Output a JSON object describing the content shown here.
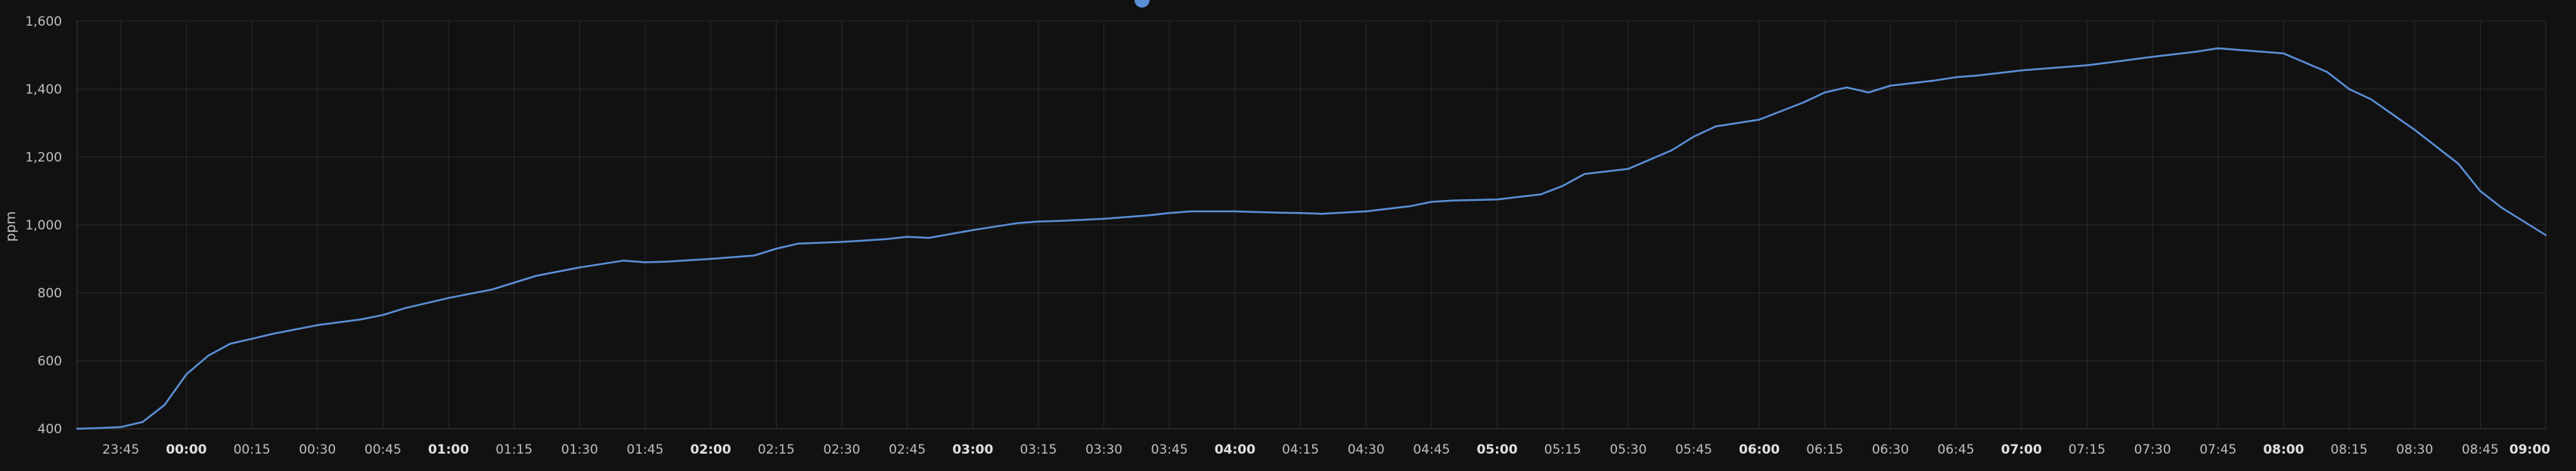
{
  "chart_data": {
    "type": "line",
    "title": "",
    "xlabel": "",
    "ylabel": "ppm",
    "ylim": [
      400,
      1600
    ],
    "yticks": [
      "400",
      "600",
      "800",
      "1,000",
      "1,200",
      "1,400",
      "1,600"
    ],
    "xlim": [
      "23:35",
      "09:00"
    ],
    "xticks": [
      "23:45",
      "00:00",
      "00:15",
      "00:30",
      "00:45",
      "01:00",
      "01:15",
      "01:30",
      "01:45",
      "02:00",
      "02:15",
      "02:30",
      "02:45",
      "03:00",
      "03:15",
      "03:30",
      "03:45",
      "04:00",
      "04:15",
      "04:30",
      "04:45",
      "05:00",
      "05:15",
      "05:30",
      "05:45",
      "06:00",
      "06:15",
      "06:30",
      "06:45",
      "07:00",
      "07:15",
      "07:30",
      "07:45",
      "08:00",
      "08:15",
      "08:30",
      "08:45",
      "09:00"
    ],
    "xticks_bold": [
      "00:00",
      "01:00",
      "02:00",
      "03:00",
      "04:00",
      "05:00",
      "06:00",
      "07:00",
      "08:00",
      "09:00"
    ],
    "grid": true,
    "legend": "top-center",
    "colors": {
      "background": "#111111",
      "grid": "#2a2a2a",
      "series": "#5b8fd6"
    },
    "series": [
      {
        "x": [
          "23:35",
          "23:40",
          "23:45",
          "23:50",
          "23:55",
          "00:00",
          "00:05",
          "00:10",
          "00:15",
          "00:20",
          "00:30",
          "00:40",
          "00:45",
          "00:50",
          "01:00",
          "01:10",
          "01:15",
          "01:20",
          "01:30",
          "01:40",
          "01:45",
          "01:50",
          "02:00",
          "02:10",
          "02:15",
          "02:20",
          "02:30",
          "02:40",
          "02:45",
          "02:50",
          "03:00",
          "03:10",
          "03:15",
          "03:20",
          "03:30",
          "03:40",
          "03:45",
          "03:50",
          "04:00",
          "04:10",
          "04:15",
          "04:20",
          "04:30",
          "04:40",
          "04:45",
          "04:50",
          "05:00",
          "05:10",
          "05:15",
          "05:20",
          "05:30",
          "05:40",
          "05:45",
          "05:50",
          "06:00",
          "06:10",
          "06:15",
          "06:20",
          "06:25",
          "06:30",
          "06:40",
          "06:45",
          "06:50",
          "07:00",
          "07:10",
          "07:15",
          "07:20",
          "07:30",
          "07:40",
          "07:45",
          "07:50",
          "08:00",
          "08:10",
          "08:15",
          "08:20",
          "08:30",
          "08:40",
          "08:45",
          "08:50",
          "09:00"
        ],
        "values": [
          400,
          402,
          405,
          420,
          470,
          560,
          615,
          650,
          665,
          680,
          705,
          722,
          735,
          755,
          785,
          810,
          830,
          850,
          875,
          895,
          890,
          892,
          900,
          910,
          930,
          945,
          950,
          958,
          965,
          962,
          985,
          1005,
          1010,
          1012,
          1018,
          1028,
          1035,
          1040,
          1040,
          1036,
          1035,
          1033,
          1040,
          1055,
          1068,
          1072,
          1075,
          1090,
          1115,
          1150,
          1165,
          1220,
          1260,
          1290,
          1310,
          1360,
          1390,
          1405,
          1390,
          1410,
          1425,
          1435,
          1440,
          1455,
          1465,
          1470,
          1478,
          1495,
          1510,
          1520,
          1515,
          1505,
          1450,
          1400,
          1370,
          1280,
          1180,
          1100,
          1050,
          970
        ]
      }
    ]
  }
}
